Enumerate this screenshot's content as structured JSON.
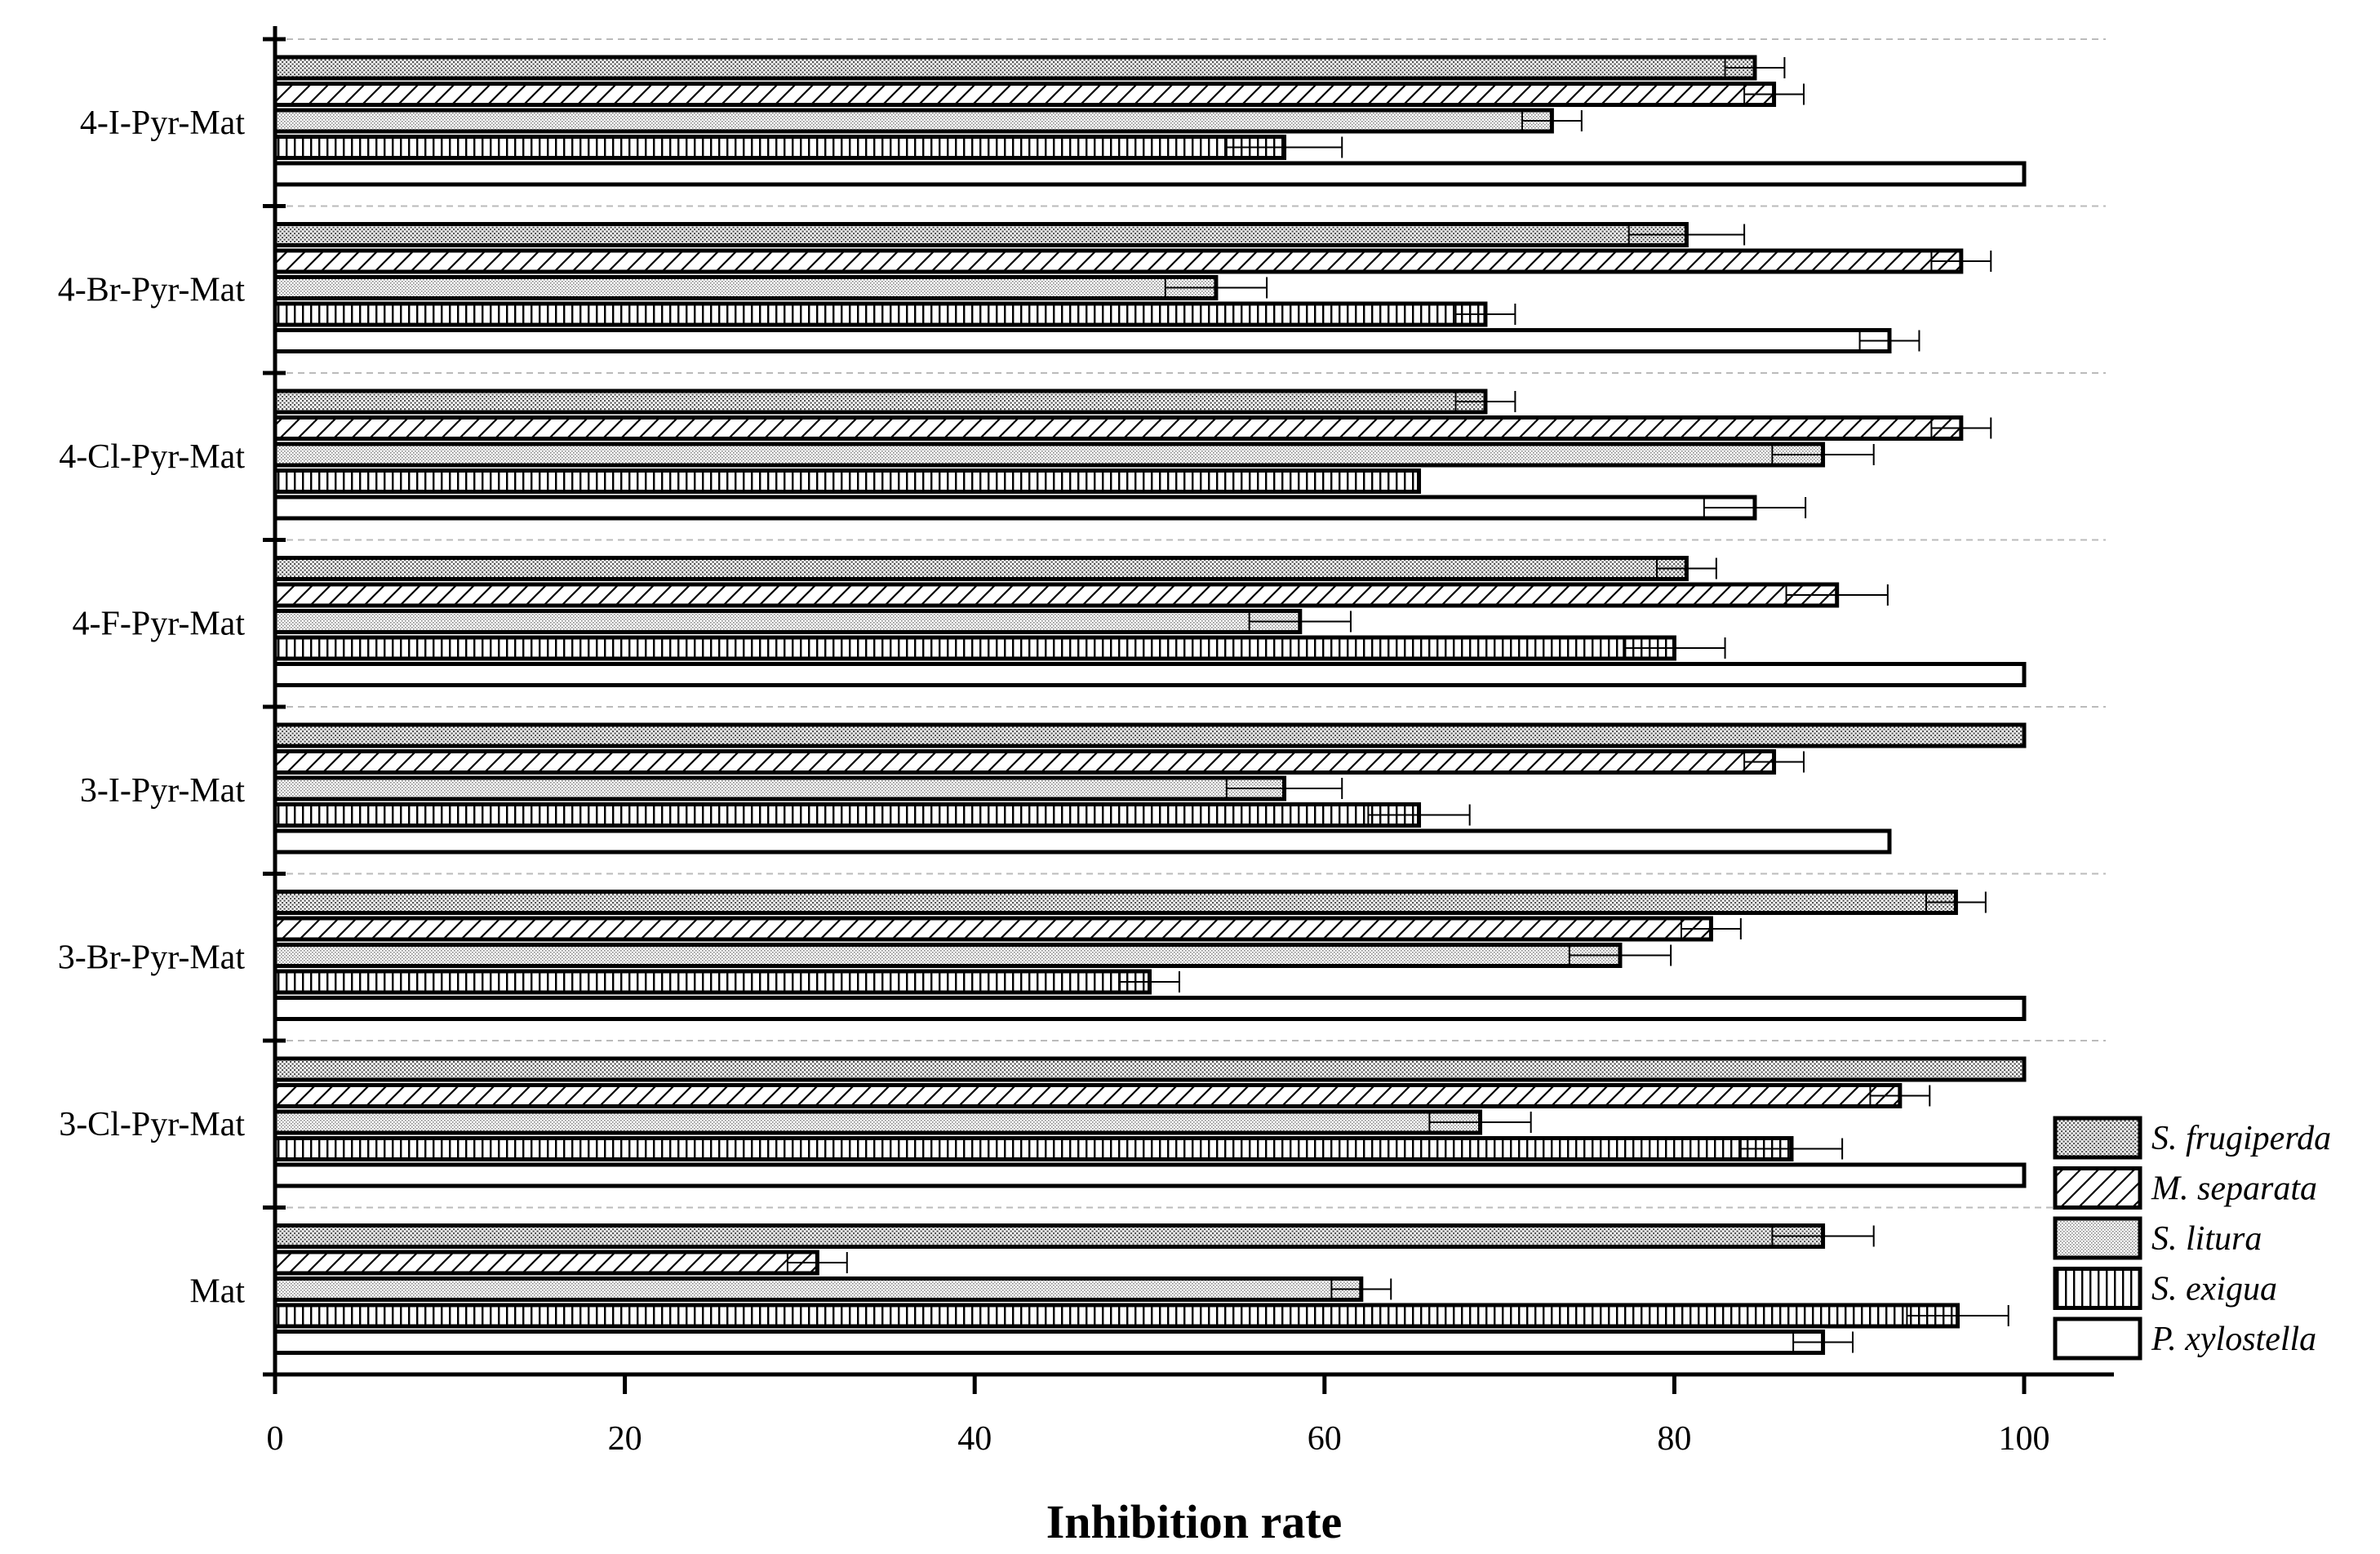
{
  "chart_data": {
    "type": "bar",
    "orientation": "horizontal",
    "title": "",
    "xlabel": "Inhibition rate",
    "ylabel": "",
    "xlim": [
      0,
      105
    ],
    "xticks": [
      0,
      20,
      40,
      60,
      80,
      100
    ],
    "categories": [
      "4-I-Pyr-Mat",
      "4-Br-Pyr-Mat",
      "4-Cl-Pyr-Mat",
      "4-F-Pyr-Mat",
      "3-I-Pyr-Mat",
      "3-Br-Pyr-Mat",
      "3-Cl-Pyr-Mat",
      "Mat"
    ],
    "series": [
      {
        "name": "S. frugiperda",
        "pattern": "dots",
        "values": [
          84.6,
          80.7,
          69.2,
          80.7,
          100,
          96.1,
          100,
          88.5
        ],
        "errors": [
          1.7,
          3.3,
          1.7,
          1.7,
          0,
          1.7,
          0,
          2.9
        ]
      },
      {
        "name": "M. separata",
        "pattern": "diagonal",
        "values": [
          85.7,
          96.4,
          96.4,
          89.3,
          85.7,
          82.1,
          92.9,
          31.0
        ],
        "errors": [
          1.7,
          1.7,
          1.7,
          2.9,
          1.7,
          1.7,
          1.7,
          1.7
        ]
      },
      {
        "name": "S. litura",
        "pattern": "fine-dots",
        "values": [
          73.0,
          53.8,
          88.5,
          58.6,
          57.7,
          76.9,
          68.9,
          62.1
        ],
        "errors": [
          1.7,
          2.9,
          2.9,
          2.9,
          3.3,
          2.9,
          2.9,
          1.7
        ]
      },
      {
        "name": "S. exigua",
        "pattern": "vertical",
        "values": [
          57.7,
          69.2,
          65.4,
          80.0,
          65.4,
          50.0,
          86.7,
          96.2
        ],
        "errors": [
          3.3,
          1.7,
          0,
          2.9,
          2.9,
          1.7,
          2.9,
          2.9
        ]
      },
      {
        "name": "P. xylostella",
        "pattern": "none",
        "values": [
          100,
          92.3,
          84.6,
          100,
          92.3,
          100,
          100,
          88.5
        ],
        "errors": [
          0,
          1.7,
          2.9,
          0,
          0,
          0,
          0,
          1.7
        ]
      }
    ],
    "legend_position": "bottom-right",
    "grid": "dashed horizontal separators between groups"
  }
}
